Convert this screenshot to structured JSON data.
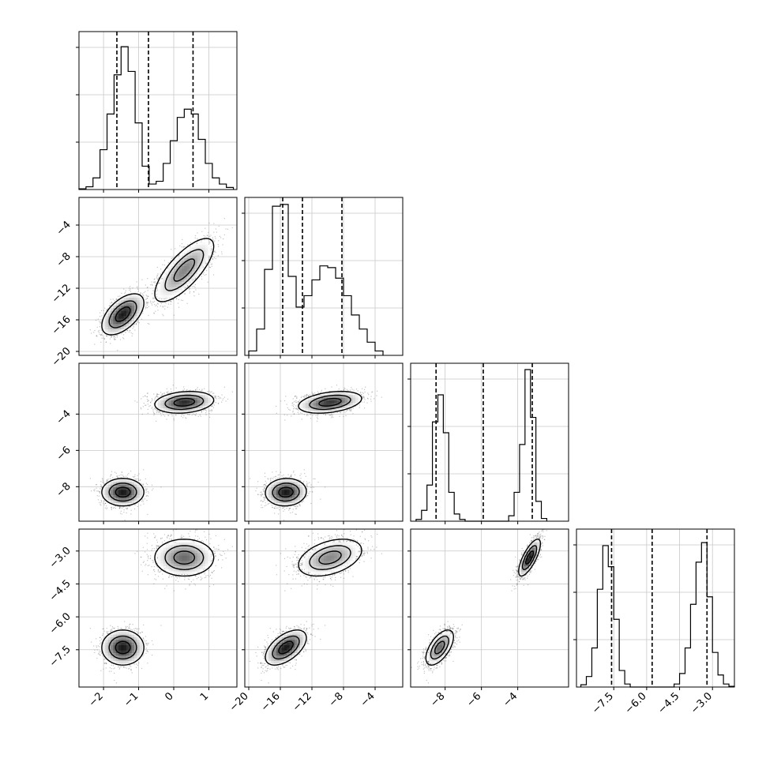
{
  "chart_data": {
    "type": "scatter",
    "variant": "corner-plot",
    "n_params": 4,
    "grid": true,
    "colors": {
      "line": "#000000",
      "points": "#555555",
      "grid": "#c8c8c8"
    },
    "params": [
      {
        "index": 0,
        "range": [
          -2.7,
          1.8
        ],
        "ticks": [
          "-2",
          "-1",
          "0",
          "1"
        ],
        "tick_values": [
          -2,
          -1,
          0,
          1
        ],
        "hist_ymax": 230,
        "hist_edges": [
          -2.7,
          -2.5,
          -2.3,
          -2.1,
          -1.9,
          -1.7,
          -1.5,
          -1.3,
          -1.1,
          -0.9,
          -0.7,
          -0.5,
          -0.3,
          -0.1,
          0.1,
          0.3,
          0.5,
          0.7,
          0.9,
          1.1,
          1.3,
          1.5,
          1.7
        ],
        "hist_counts": [
          1,
          4,
          17,
          58,
          110,
          167,
          208,
          172,
          97,
          34,
          8,
          12,
          38,
          71,
          105,
          117,
          110,
          73,
          38,
          17,
          8,
          3
        ],
        "quantiles": [
          -1.62,
          -0.72,
          0.55
        ]
      },
      {
        "index": 1,
        "range": [
          -20.5,
          -0.5
        ],
        "ticks": [
          "-20",
          "-16",
          "-12",
          "-8",
          "-4"
        ],
        "tick_values": [
          -20,
          -16,
          -12,
          -8,
          -4
        ],
        "hist_ymax": 180,
        "hist_edges": [
          -20,
          -19,
          -18,
          -17,
          -16,
          -15,
          -14,
          -13,
          -12,
          -11,
          -10,
          -9,
          -8,
          -7,
          -6,
          -5,
          -4,
          -3
        ],
        "hist_counts": [
          5,
          30,
          98,
          170,
          172,
          90,
          55,
          68,
          86,
          102,
          100,
          88,
          68,
          46,
          30,
          15,
          5
        ],
        "quantiles": [
          -15.7,
          -13.2,
          -8.2
        ]
      },
      {
        "index": 2,
        "range": [
          -9.9,
          -1.2
        ],
        "ticks": [
          "-8",
          "-6",
          "-4"
        ],
        "tick_values": [
          -8,
          -6,
          -4
        ],
        "hist_ymax": 175,
        "hist_edges": [
          -9.6,
          -9.3,
          -9.0,
          -8.7,
          -8.4,
          -8.1,
          -7.8,
          -7.5,
          -7.2,
          -6.9,
          -6.6,
          -6.3,
          -6.0,
          -5.7,
          -5.4,
          -5.1,
          -4.8,
          -4.5,
          -4.2,
          -3.9,
          -3.6,
          -3.3,
          -3.0,
          -2.7,
          -2.4
        ],
        "hist_counts": [
          2,
          12,
          40,
          110,
          140,
          98,
          32,
          8,
          2,
          0,
          0,
          0,
          0,
          0,
          0,
          0,
          0,
          6,
          32,
          85,
          168,
          115,
          22,
          3
        ],
        "quantiles": [
          -8.5,
          -5.9,
          -3.2
        ]
      },
      {
        "index": 3,
        "range": [
          -9.2,
          -2.0
        ],
        "ticks": [
          "-7.5",
          "-6.0",
          "-4.5",
          "-3.0"
        ],
        "tick_values": [
          -7.5,
          -6.0,
          -4.5,
          -3.0
        ],
        "hist_ymax": 210,
        "hist_edges": [
          -9.0,
          -8.75,
          -8.5,
          -8.25,
          -8.0,
          -7.75,
          -7.5,
          -7.25,
          -7.0,
          -6.75,
          -6.5,
          -6.25,
          -6.0,
          -5.75,
          -5.5,
          -5.25,
          -5.0,
          -4.75,
          -4.5,
          -4.25,
          -4.0,
          -3.75,
          -3.5,
          -3.25,
          -3.0,
          -2.75,
          -2.5,
          -2.25,
          -2.0
        ],
        "hist_counts": [
          3,
          14,
          52,
          130,
          188,
          160,
          90,
          22,
          4,
          0,
          0,
          0,
          0,
          0,
          0,
          0,
          0,
          4,
          18,
          52,
          110,
          166,
          192,
          120,
          46,
          16,
          4,
          1
        ],
        "quantiles": [
          -7.6,
          -5.75,
          -3.25
        ]
      }
    ],
    "modes": [
      {
        "weight": 0.5,
        "mean": [
          -1.45,
          -15.3,
          -8.3,
          -7.4
        ],
        "sd": [
          0.3,
          1.3,
          0.38,
          0.4
        ],
        "corr": {
          "0-1": 0.55,
          "0-2": 0.0,
          "0-3": 0.0,
          "1-2": 0.05,
          "1-3": 0.55,
          "2-3": 0.6
        }
      },
      {
        "weight": 0.5,
        "mean": [
          0.3,
          -9.7,
          -3.35,
          -3.3
        ],
        "sd": [
          0.42,
          2.0,
          0.3,
          0.42
        ],
        "corr": {
          "0-1": 0.75,
          "0-2": 0.2,
          "0-3": 0.0,
          "1-2": 0.35,
          "1-3": 0.4,
          "2-3": 0.75
        }
      }
    ]
  }
}
